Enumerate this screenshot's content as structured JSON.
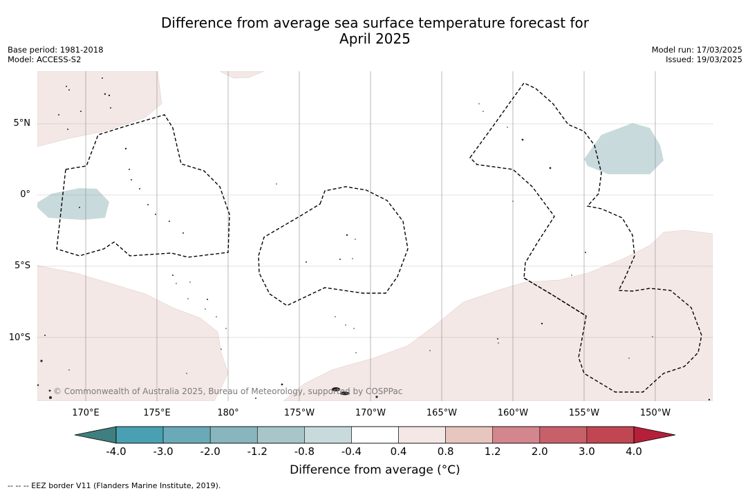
{
  "title_line1": "Difference from average sea surface temperature forecast for",
  "title_line2": "April 2025",
  "meta_left": [
    "Base period: 1981-2018",
    "Model: ACCESS-S2"
  ],
  "meta_right": [
    "Model run: 17/03/2025",
    "Issued: 19/03/2025"
  ],
  "lon_labels": [
    "170°E",
    "175°E",
    "180°",
    "175°W",
    "170°W",
    "165°W",
    "160°W",
    "155°W",
    "150°W"
  ],
  "lat_labels": [
    "5°N",
    "0°",
    "5°S",
    "10°S"
  ],
  "copyright": "© Commonwealth of Australia 2025, Bureau of Meteorology, supported by COSPPac",
  "colorbar": {
    "ticks": [
      "-4.0",
      "-3.0",
      "-2.0",
      "-1.2",
      "-0.8",
      "-0.4",
      "0.4",
      "0.8",
      "1.2",
      "2.0",
      "3.0",
      "4.0"
    ],
    "colors": [
      "#3f7f7f",
      "#4aa0b3",
      "#6aaab8",
      "#88b5be",
      "#a8c6c9",
      "#c9dadc",
      "#ffffff",
      "#f4e8e6",
      "#e8c6c0",
      "#d4868e",
      "#c8606a",
      "#c04652",
      "#b51f3a"
    ],
    "label": "Difference from average (°C)"
  },
  "footnote": "-- -- -- EEZ border V11 (Flanders Marine Institute, 2019).",
  "colors": {
    "warm_light": "#f4e8e6",
    "cool_light": "#c9dadc",
    "gridline": "#888888"
  }
}
